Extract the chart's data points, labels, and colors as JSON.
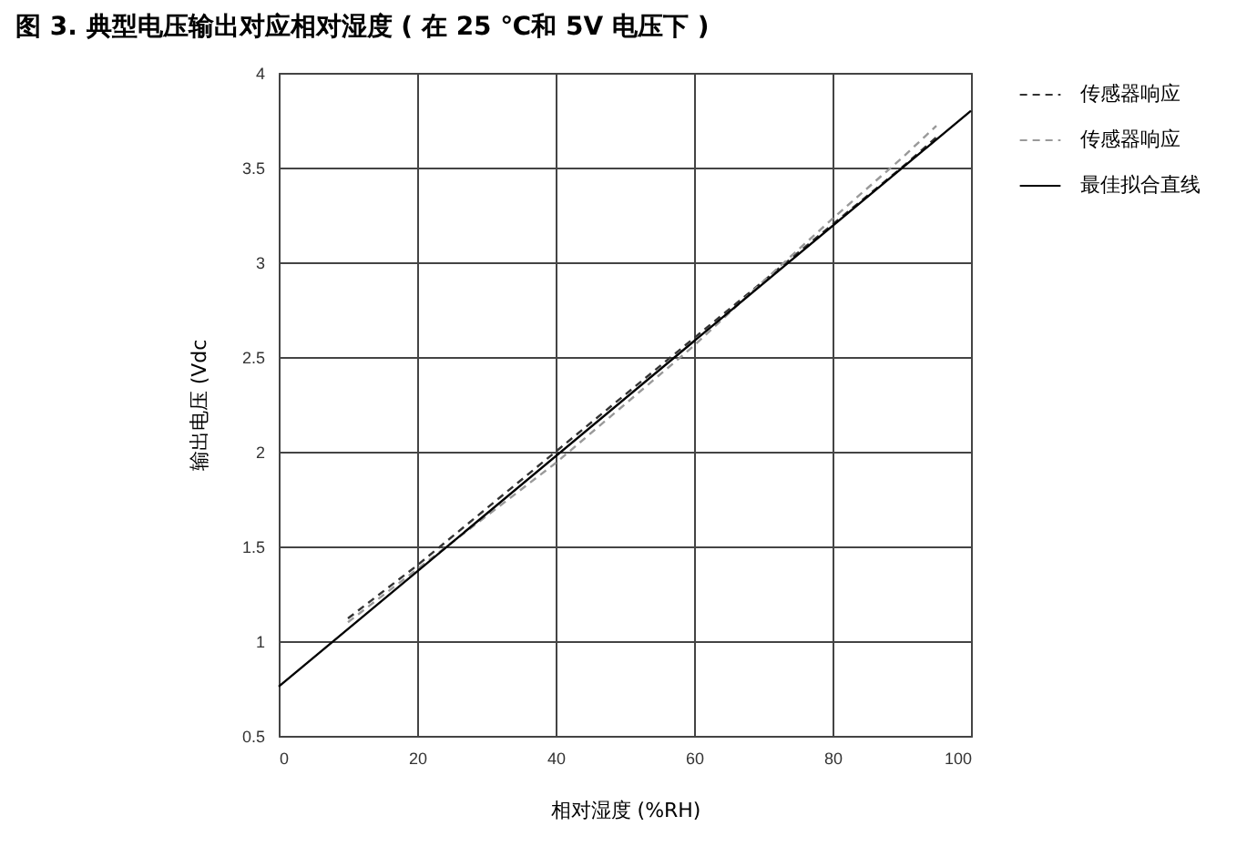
{
  "chart_data": {
    "type": "line",
    "title": "图 3. 典型电压输出对应相对湿度 ( 在 25 ℃和 5V 电压下 )",
    "xlabel": "相对湿度 (%RH)",
    "ylabel": "输出电压 (Vdc",
    "series": [
      {
        "name": "传感器响应",
        "color": "#333333",
        "line_style": "dashed",
        "x": [
          10,
          20,
          30,
          40,
          50,
          60,
          70,
          80,
          90,
          95
        ],
        "values": [
          1.12,
          1.4,
          1.7,
          2.0,
          2.3,
          2.6,
          2.9,
          3.2,
          3.5,
          3.66
        ]
      },
      {
        "name": "传感器响应",
        "color": "#999999",
        "line_style": "dashed",
        "x": [
          10,
          20,
          30,
          40,
          50,
          60,
          70,
          80,
          90,
          95
        ],
        "values": [
          1.1,
          1.38,
          1.66,
          1.94,
          2.25,
          2.56,
          2.9,
          3.23,
          3.55,
          3.72
        ]
      },
      {
        "name": "最佳拟合直线",
        "color": "#000000",
        "line_style": "solid",
        "x": [
          0,
          100
        ],
        "values": [
          0.76,
          3.8
        ]
      }
    ],
    "xlim": [
      0,
      100
    ],
    "xticks": [
      0,
      20,
      40,
      60,
      80,
      100
    ],
    "ylim": [
      0.5,
      4
    ],
    "yticks": [
      0.5,
      1,
      1.5,
      2,
      2.5,
      3,
      3.5,
      4
    ],
    "grid": true,
    "legend": "right"
  }
}
